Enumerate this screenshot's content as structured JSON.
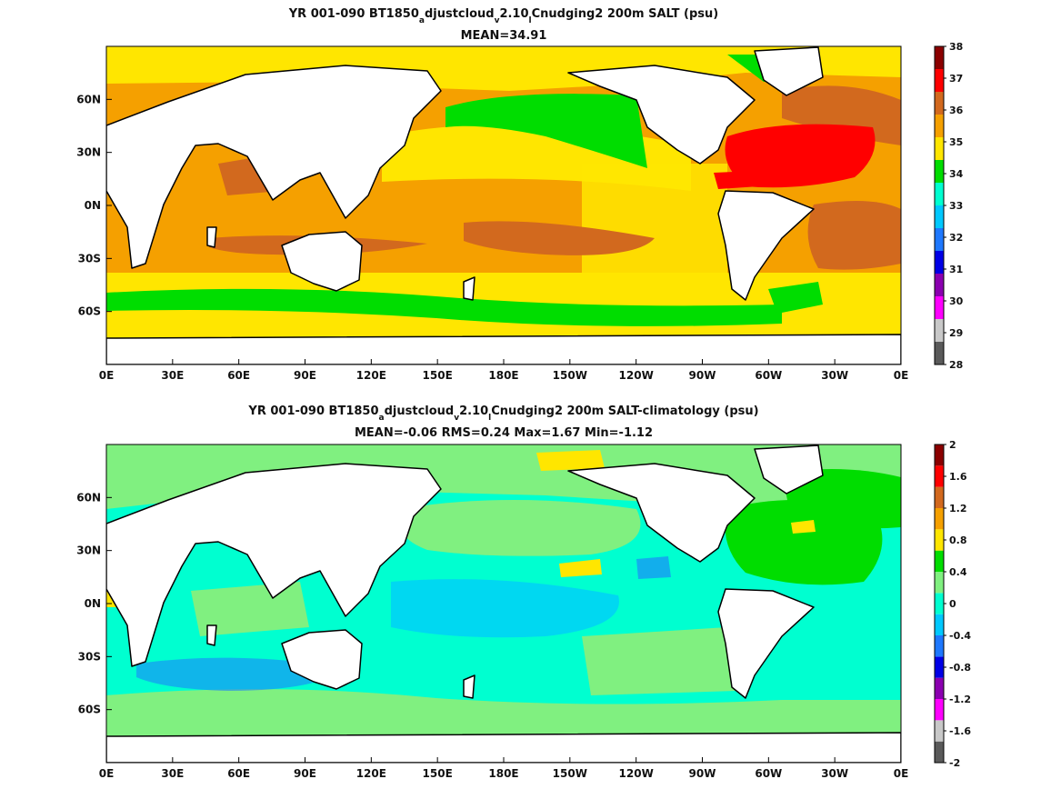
{
  "chart_data": [
    {
      "type": "heatmap",
      "title_parts": [
        "YR 001-090 BT1850",
        "a",
        "djustcloud",
        "v",
        "2.10",
        "l",
        "Cnudging2 200m SALT (psu)"
      ],
      "subtitle": "MEAN=34.91",
      "xticks": [
        "0E",
        "30E",
        "60E",
        "90E",
        "120E",
        "150E",
        "180E",
        "150W",
        "120W",
        "90W",
        "60W",
        "30W",
        "0E"
      ],
      "yticks": [
        "60N",
        "30N",
        "0N",
        "30S",
        "60S"
      ],
      "colorbar": {
        "ticks": [
          "38",
          "37",
          "36",
          "35",
          "34",
          "33",
          "32",
          "31",
          "30",
          "29",
          "28"
        ],
        "colors": [
          "#5a5a5a",
          "#c8c8c8",
          "#ff00ff",
          "#8b00b0",
          "#0000e6",
          "#1e78ff",
          "#00c8ff",
          "#00ffd0",
          "#00dd00",
          "#ffe600",
          "#f5a000",
          "#d2691e",
          "#ff0000",
          "#8b0000"
        ]
      }
    },
    {
      "type": "heatmap",
      "title_parts": [
        "YR 001-090 BT1850",
        "a",
        "djustcloud",
        "v",
        "2.10",
        "l",
        "Cnudging2 200m SALT-climatology (psu)"
      ],
      "subtitle": "MEAN=-0.06   RMS=0.24   Max=1.67   Min=-1.12",
      "xticks": [
        "0E",
        "30E",
        "60E",
        "90E",
        "120E",
        "150E",
        "180E",
        "150W",
        "120W",
        "90W",
        "60W",
        "30W",
        "0E"
      ],
      "yticks": [
        "60N",
        "30N",
        "0N",
        "30S",
        "60S"
      ],
      "colorbar": {
        "ticks": [
          "2",
          "1.6",
          "1.2",
          "0.8",
          "0.4",
          "0",
          "-0.4",
          "-0.8",
          "-1.2",
          "-1.6",
          "-2"
        ],
        "colors": [
          "#5a5a5a",
          "#c8c8c8",
          "#ff00ff",
          "#8b00b0",
          "#0000e6",
          "#1e78ff",
          "#00c8ff",
          "#00ffd0",
          "#80f080",
          "#00dd00",
          "#ffe600",
          "#f5a000",
          "#d2691e",
          "#ff0000",
          "#8b0000"
        ]
      }
    }
  ]
}
